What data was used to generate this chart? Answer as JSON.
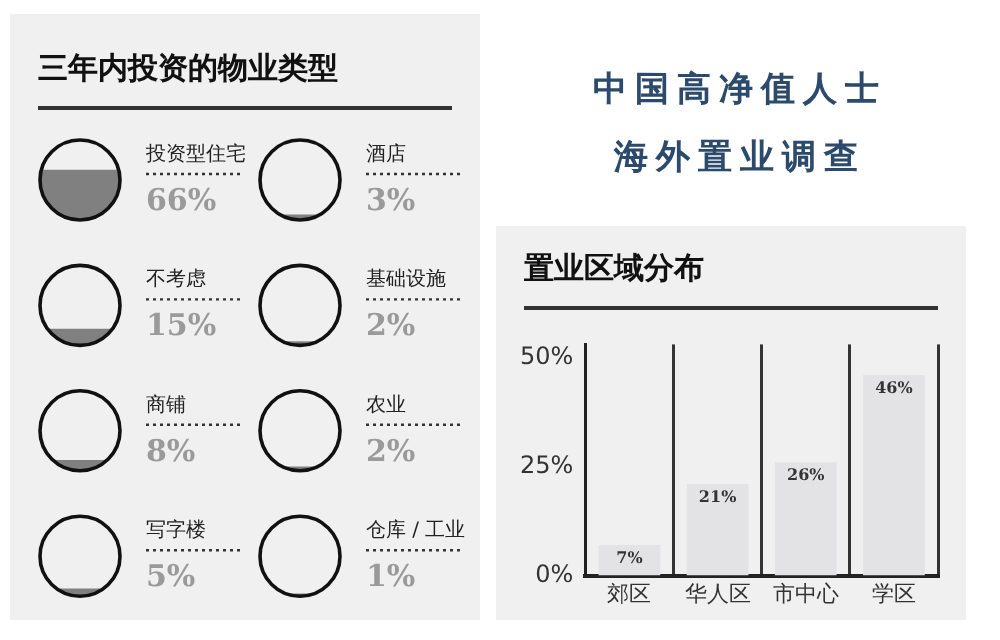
{
  "chart_data": [
    {
      "type": "other",
      "title": "三年内投资的物业类型",
      "categories": [
        "投资型住宅",
        "不考虑",
        "商铺",
        "写字楼",
        "酒店",
        "基础设施",
        "农业",
        "仓库 / 工业"
      ],
      "values": [
        66,
        15,
        8,
        5,
        3,
        2,
        2,
        1
      ],
      "value_labels": [
        "66%",
        "15%",
        "8%",
        "5%",
        "3%",
        "2%",
        "2%",
        "1%"
      ]
    },
    {
      "type": "other",
      "title": "中国高净值人士",
      "subtitle": "海外置业调查"
    },
    {
      "type": "bar",
      "title": "置业区域分布",
      "categories": [
        "郊区",
        "华人区",
        "市中心",
        "学区"
      ],
      "values": [
        7,
        21,
        26,
        46
      ],
      "value_labels": [
        "7%",
        "21%",
        "26%",
        "46%"
      ],
      "color": "#e3e3e5",
      "ylim": [
        0,
        53
      ],
      "yticks": [
        {
          "value": 0,
          "label": "0%"
        },
        {
          "value": 25,
          "label": "25%"
        },
        {
          "value": 50,
          "label": "50%"
        }
      ],
      "grid": "x"
    }
  ]
}
